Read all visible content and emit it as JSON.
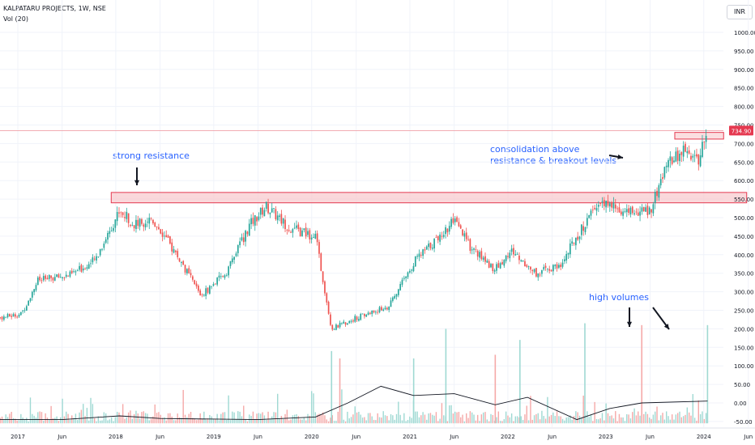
{
  "header": {
    "symbol_line": "KALPATARU PROJECTS, 1W, NSE",
    "indicator_line": "Vol (20)"
  },
  "currency_button": "INR",
  "colors": {
    "up": "#26a69a",
    "down": "#ef5350",
    "zone_fill": "#f8c8cc",
    "zone_stroke": "#e53950",
    "annotation": "#2962ff",
    "price_badge": "#e53950"
  },
  "annotations": {
    "strong_resistance": "strong resistance",
    "consolidation_line1": "consolidation above",
    "consolidation_line2": "resistance & breakout levels",
    "high_volumes": "high volumes"
  },
  "chart_data": {
    "type": "candlestick",
    "interval": "1W",
    "x_ticks": [
      "2017",
      "Jun",
      "2018",
      "Jun",
      "2019",
      "Jun",
      "2020",
      "Jun",
      "2021",
      "Jun",
      "2022",
      "Jun",
      "2023",
      "Jun",
      "2024",
      "Jun"
    ],
    "y_ticks": [
      1000,
      950,
      900,
      850,
      800,
      750,
      700,
      650,
      600,
      550,
      500,
      450,
      400,
      350,
      300,
      250,
      200,
      150,
      100,
      50,
      0,
      -50
    ],
    "y_tick_labels": [
      "1000.00",
      "950.00",
      "900.00",
      "850.00",
      "800.00",
      "750.00",
      "700.00",
      "650.00",
      "600.00",
      "550.00",
      "500.00",
      "450.00",
      "400.00",
      "350.00",
      "300.00",
      "250.00",
      "200.00",
      "150.00",
      "100.00",
      "50.00",
      "0.00",
      "-50.00"
    ],
    "ylim": [
      -55,
      1010
    ],
    "last_price": 734.9,
    "last_price_label": "734.90",
    "resistance_zone": {
      "low": 540,
      "high": 568,
      "from": "2017-12",
      "to": "2024-06"
    },
    "breakout_zone": {
      "low": 712,
      "high": 730,
      "from": "2023-09",
      "to": "2024-03"
    },
    "price_path": [
      {
        "x": "2016-09",
        "y": 225
      },
      {
        "x": "2017-01",
        "y": 240
      },
      {
        "x": "2017-03",
        "y": 330
      },
      {
        "x": "2017-07",
        "y": 345
      },
      {
        "x": "2017-10",
        "y": 385
      },
      {
        "x": "2018-01",
        "y": 520
      },
      {
        "x": "2018-03",
        "y": 480
      },
      {
        "x": "2018-05",
        "y": 500
      },
      {
        "x": "2018-08",
        "y": 400
      },
      {
        "x": "2018-11",
        "y": 290
      },
      {
        "x": "2019-02",
        "y": 350
      },
      {
        "x": "2019-05",
        "y": 480
      },
      {
        "x": "2019-07",
        "y": 530
      },
      {
        "x": "2019-10",
        "y": 470
      },
      {
        "x": "2020-01",
        "y": 450
      },
      {
        "x": "2020-03",
        "y": 200
      },
      {
        "x": "2020-06",
        "y": 230
      },
      {
        "x": "2020-10",
        "y": 260
      },
      {
        "x": "2021-01",
        "y": 380
      },
      {
        "x": "2021-06",
        "y": 490
      },
      {
        "x": "2021-08",
        "y": 420
      },
      {
        "x": "2021-11",
        "y": 360
      },
      {
        "x": "2022-01",
        "y": 410
      },
      {
        "x": "2022-04",
        "y": 350
      },
      {
        "x": "2022-07",
        "y": 370
      },
      {
        "x": "2022-09",
        "y": 450
      },
      {
        "x": "2022-12",
        "y": 545
      },
      {
        "x": "2023-03",
        "y": 510
      },
      {
        "x": "2023-06",
        "y": 520
      },
      {
        "x": "2023-08",
        "y": 640
      },
      {
        "x": "2023-10",
        "y": 680
      },
      {
        "x": "2023-12",
        "y": 655
      },
      {
        "x": "2024-01",
        "y": 745
      }
    ],
    "high_volume_weeks": [
      {
        "x": "2020-03",
        "y": 140
      },
      {
        "x": "2020-04",
        "y": 120
      },
      {
        "x": "2021-01",
        "y": 120
      },
      {
        "x": "2021-05",
        "y": 200
      },
      {
        "x": "2021-11",
        "y": 130
      },
      {
        "x": "2022-02",
        "y": 170
      },
      {
        "x": "2022-10",
        "y": 215
      },
      {
        "x": "2023-05",
        "y": 210
      },
      {
        "x": "2024-01",
        "y": 210
      }
    ],
    "volume_ma_path": [
      {
        "x": "2016-09",
        "y": -45
      },
      {
        "x": "2017-06",
        "y": -45
      },
      {
        "x": "2018-01",
        "y": -35
      },
      {
        "x": "2018-06",
        "y": -42
      },
      {
        "x": "2019-06",
        "y": -45
      },
      {
        "x": "2020-01",
        "y": -38
      },
      {
        "x": "2020-05",
        "y": 0
      },
      {
        "x": "2020-09",
        "y": 45
      },
      {
        "x": "2021-01",
        "y": 20
      },
      {
        "x": "2021-06",
        "y": 25
      },
      {
        "x": "2021-11",
        "y": -5
      },
      {
        "x": "2022-03",
        "y": 15
      },
      {
        "x": "2022-09",
        "y": -45
      },
      {
        "x": "2023-01",
        "y": -15
      },
      {
        "x": "2023-05",
        "y": 0
      },
      {
        "x": "2024-01",
        "y": 5
      }
    ]
  }
}
